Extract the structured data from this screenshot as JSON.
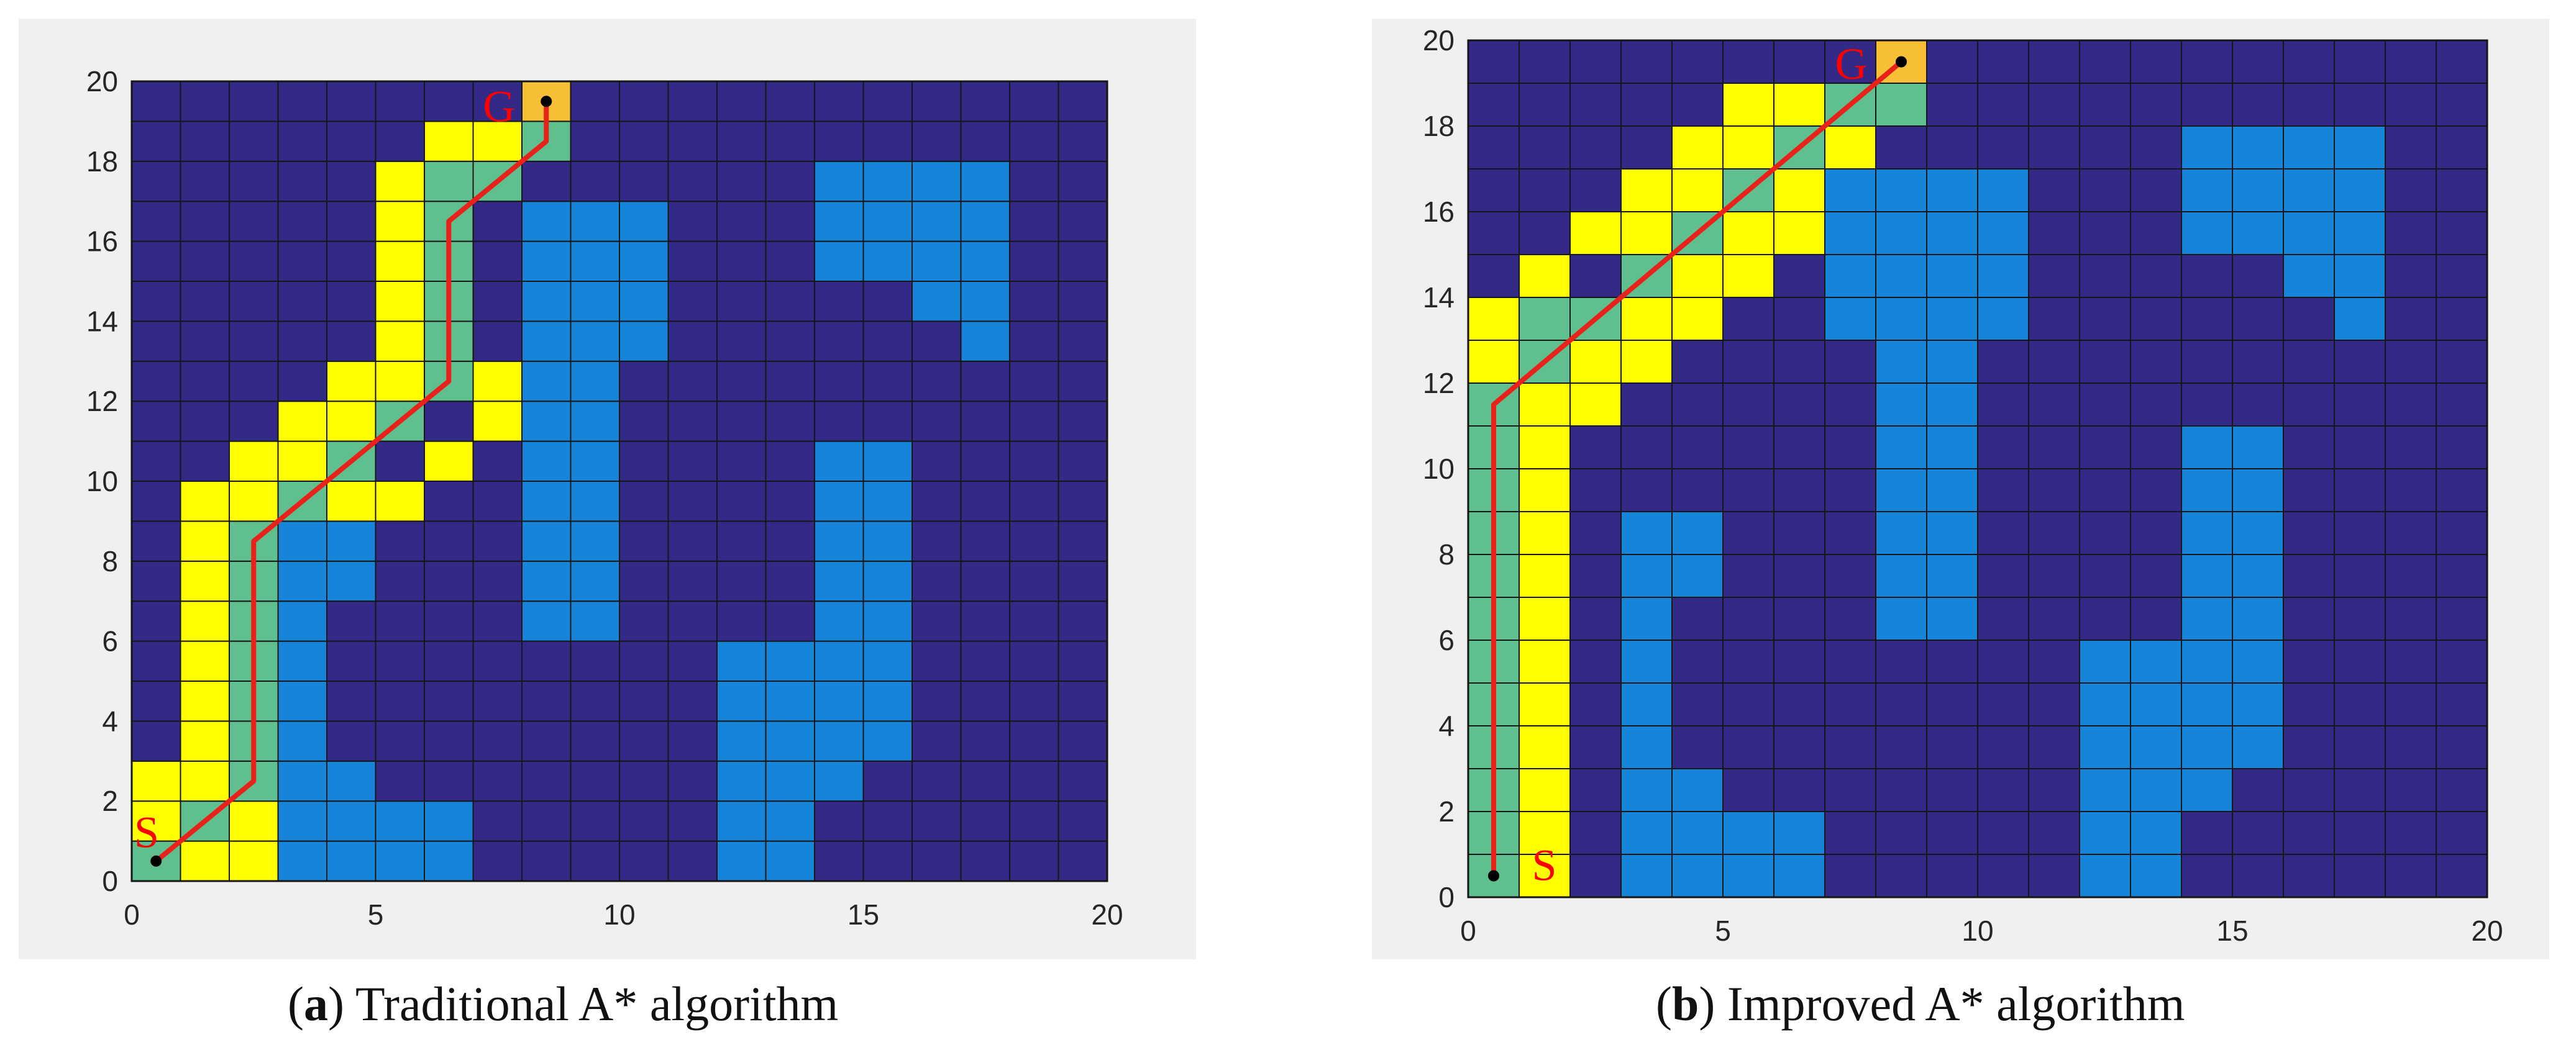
{
  "colors": {
    "free": "#332a87",
    "obstacle": "#1584d9",
    "searched": "#ffff00",
    "path_cell": "#5fbf8f",
    "goal_cell": "#f7bf35",
    "grid_line": "#161616",
    "path_line": "#e8221b",
    "label": "#ff0000",
    "background": "#f0f0f0"
  },
  "panels": [
    {
      "id": "a",
      "caption": {
        "open": "(",
        "letter": "a",
        "close": ")",
        "text": " Traditional A* algorithm"
      },
      "start_label": "S",
      "goal_label": "G",
      "chart_data": {
        "type": "heatmap",
        "grid_size": [
          20,
          20
        ],
        "xlim": [
          0,
          20
        ],
        "ylim": [
          0,
          20
        ],
        "x_ticks": [
          "0",
          "5",
          "10",
          "15",
          "20"
        ],
        "y_ticks": [
          "0",
          "2",
          "4",
          "6",
          "8",
          "10",
          "12",
          "14",
          "16",
          "18",
          "20"
        ],
        "obstacles": [
          [
            8,
            16
          ],
          [
            9,
            16
          ],
          [
            10,
            16
          ],
          [
            8,
            15
          ],
          [
            9,
            15
          ],
          [
            10,
            15
          ],
          [
            8,
            14
          ],
          [
            9,
            14
          ],
          [
            10,
            14
          ],
          [
            8,
            13
          ],
          [
            9,
            13
          ],
          [
            10,
            13
          ],
          [
            8,
            12
          ],
          [
            9,
            12
          ],
          [
            8,
            11
          ],
          [
            9,
            11
          ],
          [
            8,
            10
          ],
          [
            9,
            10
          ],
          [
            8,
            9
          ],
          [
            9,
            9
          ],
          [
            8,
            8
          ],
          [
            9,
            8
          ],
          [
            8,
            7
          ],
          [
            9,
            7
          ],
          [
            8,
            6
          ],
          [
            9,
            6
          ],
          [
            3,
            8
          ],
          [
            4,
            8
          ],
          [
            3,
            7
          ],
          [
            4,
            7
          ],
          [
            3,
            6
          ],
          [
            3,
            5
          ],
          [
            3,
            4
          ],
          [
            3,
            3
          ],
          [
            3,
            2
          ],
          [
            4,
            2
          ],
          [
            3,
            1
          ],
          [
            4,
            1
          ],
          [
            5,
            1
          ],
          [
            6,
            1
          ],
          [
            3,
            0
          ],
          [
            4,
            0
          ],
          [
            5,
            0
          ],
          [
            6,
            0
          ],
          [
            14,
            17
          ],
          [
            15,
            17
          ],
          [
            16,
            17
          ],
          [
            17,
            17
          ],
          [
            14,
            16
          ],
          [
            15,
            16
          ],
          [
            16,
            16
          ],
          [
            17,
            16
          ],
          [
            14,
            15
          ],
          [
            15,
            15
          ],
          [
            16,
            15
          ],
          [
            17,
            15
          ],
          [
            16,
            14
          ],
          [
            17,
            14
          ],
          [
            17,
            13
          ],
          [
            14,
            10
          ],
          [
            15,
            10
          ],
          [
            14,
            9
          ],
          [
            15,
            9
          ],
          [
            14,
            8
          ],
          [
            15,
            8
          ],
          [
            14,
            7
          ],
          [
            15,
            7
          ],
          [
            14,
            6
          ],
          [
            15,
            6
          ],
          [
            14,
            5
          ],
          [
            15,
            5
          ],
          [
            12,
            5
          ],
          [
            13,
            5
          ],
          [
            12,
            4
          ],
          [
            13,
            4
          ],
          [
            14,
            4
          ],
          [
            15,
            4
          ],
          [
            12,
            3
          ],
          [
            13,
            3
          ],
          [
            14,
            3
          ],
          [
            15,
            3
          ],
          [
            12,
            2
          ],
          [
            13,
            2
          ],
          [
            14,
            2
          ],
          [
            12,
            1
          ],
          [
            13,
            1
          ],
          [
            12,
            0
          ],
          [
            13,
            0
          ]
        ],
        "searched": [
          [
            7,
            18
          ],
          [
            6,
            18
          ],
          [
            7,
            17
          ],
          [
            5,
            17
          ],
          [
            5,
            16
          ],
          [
            5,
            15
          ],
          [
            5,
            14
          ],
          [
            5,
            13
          ],
          [
            4,
            12
          ],
          [
            5,
            12
          ],
          [
            7,
            12
          ],
          [
            3,
            11
          ],
          [
            4,
            11
          ],
          [
            7,
            11
          ],
          [
            2,
            10
          ],
          [
            3,
            10
          ],
          [
            4,
            10
          ],
          [
            6,
            10
          ],
          [
            1,
            9
          ],
          [
            2,
            9
          ],
          [
            4,
            9
          ],
          [
            5,
            9
          ],
          [
            1,
            8
          ],
          [
            1,
            7
          ],
          [
            2,
            7
          ],
          [
            1,
            6
          ],
          [
            2,
            6
          ],
          [
            1,
            5
          ],
          [
            2,
            5
          ],
          [
            1,
            4
          ],
          [
            2,
            4
          ],
          [
            1,
            3
          ],
          [
            2,
            3
          ],
          [
            0,
            2
          ],
          [
            1,
            2
          ],
          [
            0,
            1
          ],
          [
            2,
            1
          ],
          [
            1,
            0
          ],
          [
            2,
            0
          ]
        ],
        "path_cells": [
          [
            8,
            19
          ],
          [
            8,
            18
          ],
          [
            6,
            17
          ],
          [
            7,
            17
          ],
          [
            6,
            16
          ],
          [
            6,
            15
          ],
          [
            6,
            14
          ],
          [
            6,
            13
          ],
          [
            6,
            12
          ],
          [
            5,
            11
          ],
          [
            4,
            10
          ],
          [
            3,
            9
          ],
          [
            2,
            8
          ],
          [
            2,
            7
          ],
          [
            2,
            6
          ],
          [
            2,
            5
          ],
          [
            2,
            4
          ],
          [
            2,
            3
          ],
          [
            2,
            2
          ],
          [
            1,
            1
          ],
          [
            0,
            0
          ]
        ],
        "goal_cells": [
          [
            8,
            19
          ]
        ],
        "path": [
          [
            0.5,
            0.5
          ],
          [
            2.5,
            2.5
          ],
          [
            2.5,
            8.5
          ],
          [
            6.5,
            12.5
          ],
          [
            6.5,
            16.5
          ],
          [
            8.5,
            18.5
          ],
          [
            8.5,
            19.5
          ]
        ],
        "start": [
          0.5,
          0.5
        ],
        "goal": [
          8.5,
          19.5
        ]
      }
    },
    {
      "id": "b",
      "caption": {
        "open": "(",
        "letter": "b",
        "close": ")",
        "text": " Improved A* algorithm"
      },
      "start_label": "S",
      "goal_label": "G",
      "chart_data": {
        "type": "heatmap",
        "grid_size": [
          20,
          20
        ],
        "xlim": [
          0,
          20
        ],
        "ylim": [
          0,
          20
        ],
        "x_ticks": [
          "0",
          "5",
          "10",
          "15",
          "20"
        ],
        "y_ticks": [
          "0",
          "2",
          "4",
          "6",
          "8",
          "10",
          "12",
          "14",
          "16",
          "18",
          "20"
        ],
        "obstacles": [
          [
            7,
            16
          ],
          [
            8,
            16
          ],
          [
            9,
            16
          ],
          [
            10,
            16
          ],
          [
            7,
            15
          ],
          [
            8,
            15
          ],
          [
            9,
            15
          ],
          [
            10,
            15
          ],
          [
            7,
            14
          ],
          [
            8,
            14
          ],
          [
            9,
            14
          ],
          [
            10,
            14
          ],
          [
            7,
            13
          ],
          [
            8,
            13
          ],
          [
            9,
            13
          ],
          [
            10,
            13
          ],
          [
            8,
            12
          ],
          [
            9,
            12
          ],
          [
            8,
            11
          ],
          [
            9,
            11
          ],
          [
            8,
            10
          ],
          [
            9,
            10
          ],
          [
            8,
            9
          ],
          [
            9,
            9
          ],
          [
            8,
            8
          ],
          [
            9,
            8
          ],
          [
            8,
            7
          ],
          [
            9,
            7
          ],
          [
            8,
            6
          ],
          [
            9,
            6
          ],
          [
            3,
            8
          ],
          [
            4,
            8
          ],
          [
            3,
            7
          ],
          [
            4,
            7
          ],
          [
            3,
            6
          ],
          [
            3,
            5
          ],
          [
            3,
            4
          ],
          [
            3,
            3
          ],
          [
            3,
            2
          ],
          [
            4,
            2
          ],
          [
            3,
            1
          ],
          [
            4,
            1
          ],
          [
            5,
            1
          ],
          [
            6,
            1
          ],
          [
            3,
            0
          ],
          [
            4,
            0
          ],
          [
            5,
            0
          ],
          [
            6,
            0
          ],
          [
            14,
            17
          ],
          [
            15,
            17
          ],
          [
            16,
            17
          ],
          [
            17,
            17
          ],
          [
            14,
            16
          ],
          [
            15,
            16
          ],
          [
            16,
            16
          ],
          [
            17,
            16
          ],
          [
            14,
            15
          ],
          [
            15,
            15
          ],
          [
            16,
            15
          ],
          [
            17,
            15
          ],
          [
            16,
            14
          ],
          [
            17,
            14
          ],
          [
            17,
            13
          ],
          [
            14,
            10
          ],
          [
            15,
            10
          ],
          [
            14,
            9
          ],
          [
            15,
            9
          ],
          [
            14,
            8
          ],
          [
            15,
            8
          ],
          [
            14,
            7
          ],
          [
            15,
            7
          ],
          [
            14,
            6
          ],
          [
            15,
            6
          ],
          [
            14,
            5
          ],
          [
            15,
            5
          ],
          [
            12,
            5
          ],
          [
            13,
            5
          ],
          [
            12,
            4
          ],
          [
            13,
            4
          ],
          [
            14,
            4
          ],
          [
            15,
            4
          ],
          [
            12,
            3
          ],
          [
            13,
            3
          ],
          [
            14,
            3
          ],
          [
            15,
            3
          ],
          [
            12,
            2
          ],
          [
            13,
            2
          ],
          [
            14,
            2
          ],
          [
            12,
            1
          ],
          [
            13,
            1
          ],
          [
            12,
            0
          ],
          [
            13,
            0
          ]
        ],
        "searched": [
          [
            6,
            18
          ],
          [
            7,
            18
          ],
          [
            5,
            18
          ],
          [
            7,
            17
          ],
          [
            4,
            17
          ],
          [
            5,
            17
          ],
          [
            6,
            17
          ],
          [
            3,
            16
          ],
          [
            4,
            16
          ],
          [
            6,
            16
          ],
          [
            2,
            15
          ],
          [
            3,
            15
          ],
          [
            5,
            15
          ],
          [
            6,
            15
          ],
          [
            1,
            14
          ],
          [
            4,
            14
          ],
          [
            5,
            14
          ],
          [
            0,
            13
          ],
          [
            3,
            13
          ],
          [
            4,
            13
          ],
          [
            0,
            12
          ],
          [
            2,
            12
          ],
          [
            3,
            12
          ],
          [
            1,
            11
          ],
          [
            2,
            11
          ],
          [
            1,
            10
          ],
          [
            1,
            9
          ],
          [
            1,
            8
          ],
          [
            1,
            7
          ],
          [
            1,
            6
          ],
          [
            1,
            5
          ],
          [
            1,
            4
          ],
          [
            1,
            3
          ],
          [
            1,
            2
          ],
          [
            1,
            1
          ],
          [
            1,
            0
          ]
        ],
        "path_cells": [
          [
            8,
            19
          ],
          [
            8,
            18
          ],
          [
            7,
            18
          ],
          [
            6,
            17
          ],
          [
            5,
            16
          ],
          [
            4,
            15
          ],
          [
            3,
            14
          ],
          [
            2,
            13
          ],
          [
            1,
            12
          ],
          [
            1,
            13
          ],
          [
            0,
            11
          ],
          [
            0,
            10
          ],
          [
            0,
            9
          ],
          [
            0,
            8
          ],
          [
            0,
            7
          ],
          [
            0,
            6
          ],
          [
            0,
            5
          ],
          [
            0,
            4
          ],
          [
            0,
            3
          ],
          [
            0,
            2
          ],
          [
            0,
            1
          ],
          [
            0,
            0
          ]
        ],
        "goal_cells": [
          [
            8,
            19
          ]
        ],
        "path": [
          [
            0.5,
            0.5
          ],
          [
            0.5,
            11.5
          ],
          [
            8.5,
            19.5
          ]
        ],
        "start": [
          0.5,
          0.5
        ],
        "goal": [
          8.5,
          19.5
        ]
      }
    }
  ]
}
